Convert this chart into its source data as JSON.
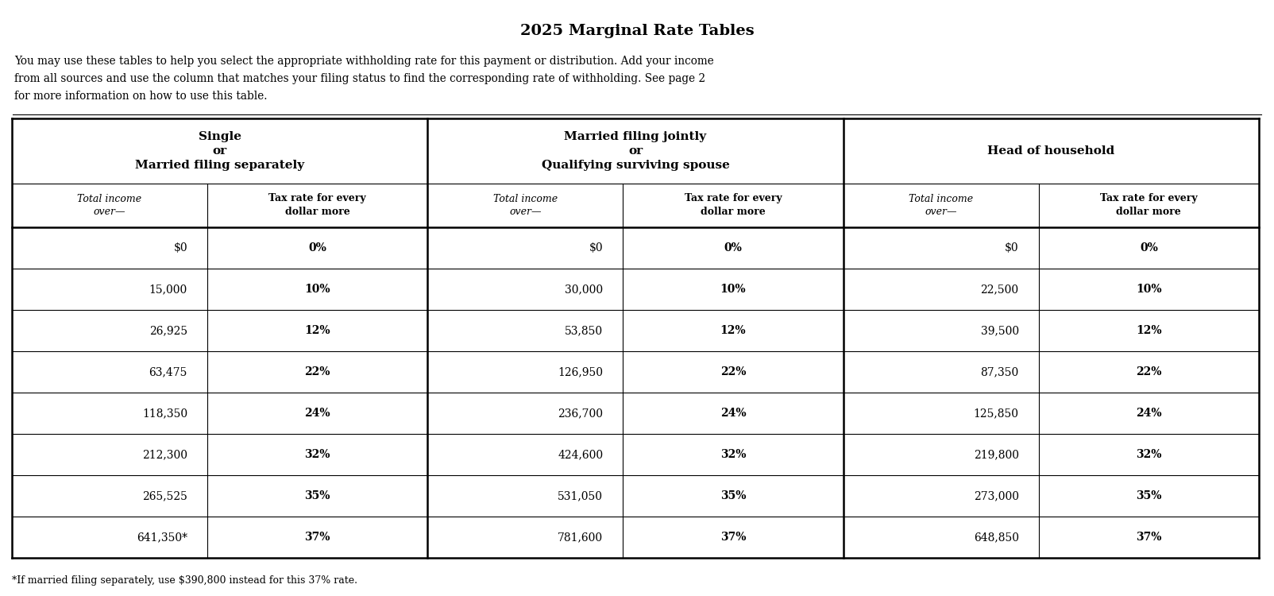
{
  "title": "2025 Marginal Rate Tables",
  "description_lines": [
    "You may use these tables to help you select the appropriate withholding rate for this payment or distribution. Add your income",
    "from all sources and use the column that matches your filing status to find the corresponding rate of withholding. See page 2",
    "for more information on how to use this table."
  ],
  "footnote": "*If married filing separately, use $390,800 instead for this 37% rate.",
  "section_headers": [
    "Single\nor\nMarried filing separately",
    "Married filing jointly\nor\nQualifying surviving spouse",
    "Head of household"
  ],
  "col_headers_left": "Total income\nover—",
  "col_headers_right": "Tax rate for every\ndollar more",
  "single_data": [
    [
      "$0",
      "0%"
    ],
    [
      "15,000",
      "10%"
    ],
    [
      "26,925",
      "12%"
    ],
    [
      "63,475",
      "22%"
    ],
    [
      "118,350",
      "24%"
    ],
    [
      "212,300",
      "32%"
    ],
    [
      "265,525",
      "35%"
    ],
    [
      "641,350*",
      "37%"
    ]
  ],
  "married_data": [
    [
      "$0",
      "0%"
    ],
    [
      "30,000",
      "10%"
    ],
    [
      "53,850",
      "12%"
    ],
    [
      "126,950",
      "22%"
    ],
    [
      "236,700",
      "24%"
    ],
    [
      "424,600",
      "32%"
    ],
    [
      "531,050",
      "35%"
    ],
    [
      "781,600",
      "37%"
    ]
  ],
  "hoh_data": [
    [
      "$0",
      "0%"
    ],
    [
      "22,500",
      "10%"
    ],
    [
      "39,500",
      "12%"
    ],
    [
      "87,350",
      "22%"
    ],
    [
      "125,850",
      "24%"
    ],
    [
      "219,800",
      "32%"
    ],
    [
      "273,000",
      "35%"
    ],
    [
      "648,850",
      "37%"
    ]
  ],
  "bg_color": "#ffffff",
  "text_color": "#000000"
}
